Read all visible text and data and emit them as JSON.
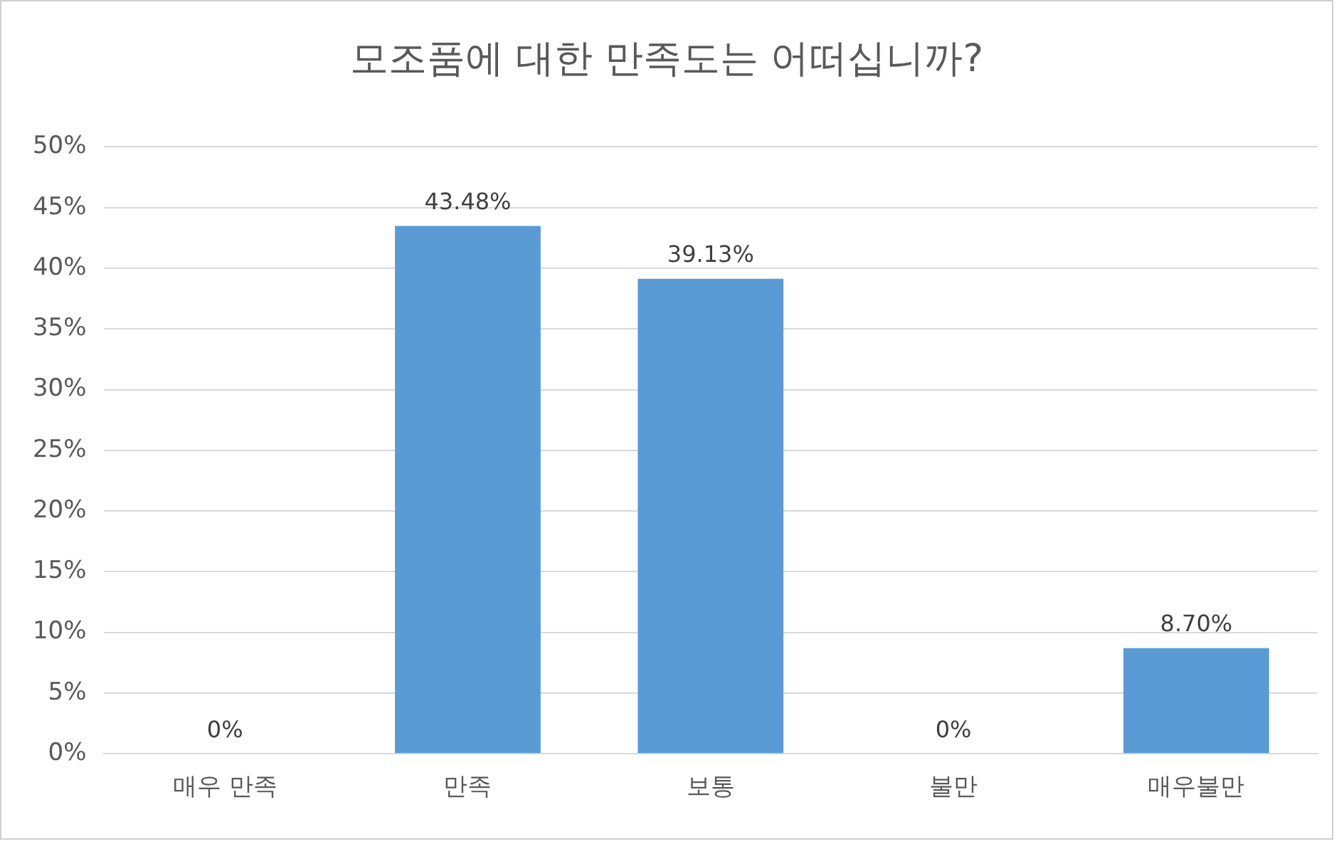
{
  "chart_data": {
    "type": "bar",
    "title": "모조품에 대한 만족도는 어떠십니까?",
    "categories": [
      "매우 만족",
      "만족",
      "보통",
      "불만",
      "매우불만"
    ],
    "values": [
      0,
      43.48,
      39.13,
      0,
      8.7
    ],
    "value_labels": [
      "0%",
      "43.48%",
      "39.13%",
      "0%",
      "8.70%"
    ],
    "color": "#5b9bd5",
    "ylim": [
      0,
      50
    ],
    "yticks": [
      {
        "value": 0,
        "label": "0%"
      },
      {
        "value": 5,
        "label": "5%"
      },
      {
        "value": 10,
        "label": "10%"
      },
      {
        "value": 15,
        "label": "15%"
      },
      {
        "value": 20,
        "label": "20%"
      },
      {
        "value": 25,
        "label": "25%"
      },
      {
        "value": 30,
        "label": "30%"
      },
      {
        "value": 35,
        "label": "35%"
      },
      {
        "value": 40,
        "label": "40%"
      },
      {
        "value": 45,
        "label": "45%"
      },
      {
        "value": 50,
        "label": "50%"
      }
    ],
    "grid": "y",
    "legend": false
  }
}
